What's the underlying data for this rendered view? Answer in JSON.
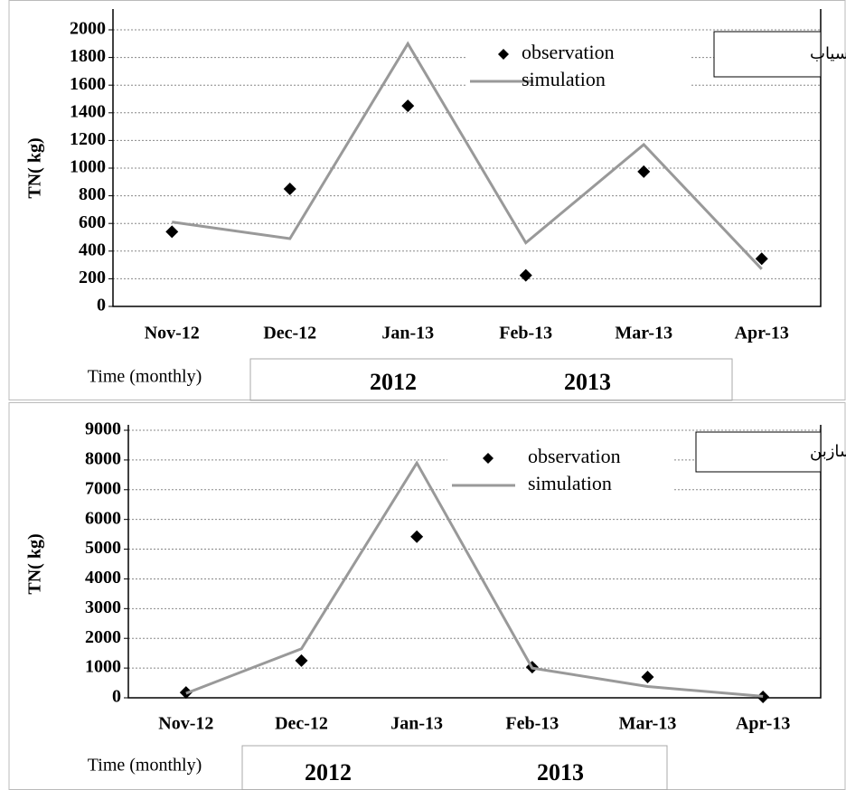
{
  "chart_data": [
    {
      "type": "line",
      "label": "گاماسیاب",
      "y_label": "TN( kg)",
      "x_label": "Time (monthly)",
      "groups": [
        "2012",
        "2013"
      ],
      "categories": [
        "Nov-12",
        "Dec-12",
        "Jan-13",
        "Feb-13",
        "Mar-13",
        "Apr-13"
      ],
      "series": [
        {
          "name": "observation",
          "color": "#000000",
          "mode": "markers",
          "values": [
            540,
            850,
            1450,
            225,
            975,
            345
          ]
        },
        {
          "name": "simulation",
          "color": "#999999",
          "mode": "lines",
          "values": [
            610,
            490,
            1900,
            460,
            1170,
            270
          ]
        }
      ],
      "ylim": [
        0,
        2000
      ],
      "yticks": [
        0,
        200,
        400,
        600,
        800,
        1000,
        1200,
        1400,
        1600,
        1800,
        2000
      ],
      "grid": true
    },
    {
      "type": "line",
      "label": "تنگ سازبن",
      "y_label": "TN( kg)",
      "x_label": "Time (monthly)",
      "groups": [
        "2012",
        "2013"
      ],
      "categories": [
        "Nov-12",
        "Dec-12",
        "Jan-13",
        "Feb-13",
        "Mar-13",
        "Apr-13"
      ],
      "series": [
        {
          "name": "observation",
          "color": "#000000",
          "mode": "markers",
          "values": [
            180,
            1250,
            5420,
            1030,
            700,
            30
          ]
        },
        {
          "name": "simulation",
          "color": "#999999",
          "mode": "lines",
          "values": [
            150,
            1650,
            7900,
            1000,
            380,
            50
          ]
        }
      ],
      "ylim": [
        0,
        9000
      ],
      "yticks": [
        0,
        1000,
        2000,
        3000,
        4000,
        5000,
        6000,
        7000,
        8000,
        9000
      ],
      "grid": true
    }
  ]
}
